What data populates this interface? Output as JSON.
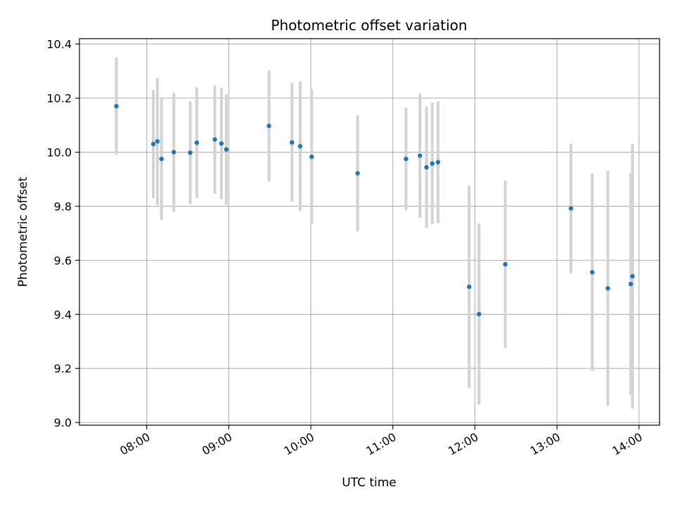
{
  "chart_data": {
    "type": "scatter",
    "title": "Photometric offset variation",
    "xlabel": "UTC time",
    "ylabel": "Photometric offset",
    "x_unit": "hours UTC",
    "xlim": [
      7.18,
      14.25
    ],
    "ylim": [
      8.99,
      10.42
    ],
    "x_ticks": [
      {
        "value": 8,
        "label": "08:00"
      },
      {
        "value": 9,
        "label": "09:00"
      },
      {
        "value": 10,
        "label": "10:00"
      },
      {
        "value": 11,
        "label": "11:00"
      },
      {
        "value": 12,
        "label": "12:00"
      },
      {
        "value": 13,
        "label": "13:00"
      },
      {
        "value": 14,
        "label": "14:00"
      }
    ],
    "y_ticks": [
      {
        "value": 9.0,
        "label": "9.0"
      },
      {
        "value": 9.2,
        "label": "9.2"
      },
      {
        "value": 9.4,
        "label": "9.4"
      },
      {
        "value": 9.6,
        "label": "9.6"
      },
      {
        "value": 9.8,
        "label": "9.8"
      },
      {
        "value": 10.0,
        "label": "10.0"
      },
      {
        "value": 10.2,
        "label": "10.2"
      },
      {
        "value": 10.4,
        "label": "10.4"
      }
    ],
    "grid": true,
    "legend": "none",
    "point_color": "#1f77b4",
    "errorbar_color": "#d3d3d3",
    "points": [
      {
        "x": 7.63,
        "y": 10.17,
        "err": 0.18
      },
      {
        "x": 8.08,
        "y": 10.03,
        "err": 0.2
      },
      {
        "x": 8.13,
        "y": 10.04,
        "err": 0.235
      },
      {
        "x": 8.18,
        "y": 9.975,
        "err": 0.225
      },
      {
        "x": 8.33,
        "y": 10.0,
        "err": 0.22
      },
      {
        "x": 8.53,
        "y": 9.998,
        "err": 0.19
      },
      {
        "x": 8.61,
        "y": 10.035,
        "err": 0.205
      },
      {
        "x": 8.83,
        "y": 10.047,
        "err": 0.2
      },
      {
        "x": 8.91,
        "y": 10.032,
        "err": 0.205
      },
      {
        "x": 8.97,
        "y": 10.01,
        "err": 0.205
      },
      {
        "x": 9.49,
        "y": 10.097,
        "err": 0.205
      },
      {
        "x": 9.77,
        "y": 10.036,
        "err": 0.22
      },
      {
        "x": 9.87,
        "y": 10.022,
        "err": 0.24
      },
      {
        "x": 10.01,
        "y": 9.983,
        "err": 0.25
      },
      {
        "x": 10.57,
        "y": 9.922,
        "err": 0.215
      },
      {
        "x": 11.16,
        "y": 9.975,
        "err": 0.19
      },
      {
        "x": 11.33,
        "y": 9.987,
        "err": 0.23
      },
      {
        "x": 11.41,
        "y": 9.944,
        "err": 0.225
      },
      {
        "x": 11.48,
        "y": 9.958,
        "err": 0.225
      },
      {
        "x": 11.55,
        "y": 9.963,
        "err": 0.225
      },
      {
        "x": 11.93,
        "y": 9.502,
        "err": 0.375
      },
      {
        "x": 12.05,
        "y": 9.401,
        "err": 0.335
      },
      {
        "x": 12.37,
        "y": 9.585,
        "err": 0.31
      },
      {
        "x": 13.17,
        "y": 9.792,
        "err": 0.24
      },
      {
        "x": 13.43,
        "y": 9.556,
        "err": 0.365
      },
      {
        "x": 13.62,
        "y": 9.496,
        "err": 0.435
      },
      {
        "x": 13.9,
        "y": 9.512,
        "err": 0.41
      },
      {
        "x": 13.92,
        "y": 9.541,
        "err": 0.49
      }
    ]
  }
}
